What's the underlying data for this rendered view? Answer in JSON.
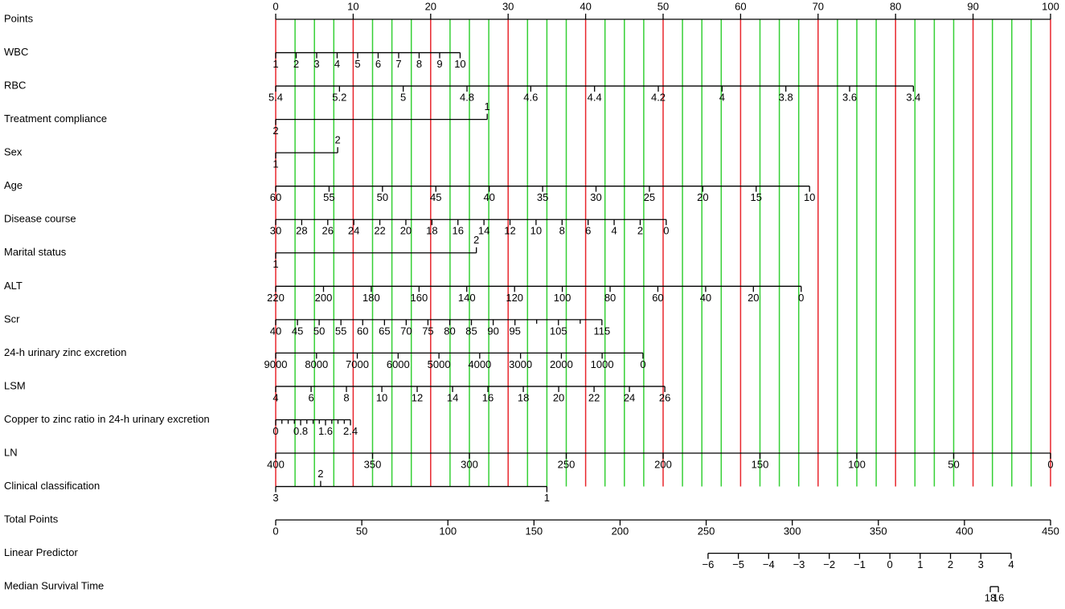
{
  "chart_data": {
    "type": "nomogram",
    "major_grid_color": "#e8262d",
    "minor_grid_color": "#35d035",
    "points_axis": {
      "name": "Points",
      "xlim": [
        0,
        100
      ],
      "xticks": [
        0,
        10,
        20,
        30,
        40,
        50,
        60,
        70,
        80,
        90,
        100
      ],
      "minor_xticks": [
        2.5,
        5,
        7.5,
        12.5,
        15,
        17.5,
        22.5,
        25,
        27.5,
        32.5,
        35,
        37.5,
        42.5,
        45,
        47.5,
        52.5,
        55,
        57.5,
        62.5,
        65,
        67.5,
        72.5,
        75,
        77.5,
        82.5,
        85,
        87.5,
        92.5,
        95,
        97.5
      ]
    },
    "rows": [
      {
        "name": "WBC",
        "ticks": [
          {
            "value": 0,
            "label": "1"
          },
          {
            "value": 2.64,
            "label": "2"
          },
          {
            "value": 5.29,
            "label": "3"
          },
          {
            "value": 7.93,
            "label": "4"
          },
          {
            "value": 10.58,
            "label": "5"
          },
          {
            "value": 13.22,
            "label": "6"
          },
          {
            "value": 15.87,
            "label": "7"
          },
          {
            "value": 18.51,
            "label": "8"
          },
          {
            "value": 21.16,
            "label": "9"
          },
          {
            "value": 23.8,
            "label": "10"
          }
        ]
      },
      {
        "name": "RBC",
        "ticks": [
          {
            "value": 0,
            "label": "5.4"
          },
          {
            "value": 8.23,
            "label": "5.2"
          },
          {
            "value": 16.46,
            "label": "5"
          },
          {
            "value": 24.69,
            "label": "4.8"
          },
          {
            "value": 32.92,
            "label": "4.6"
          },
          {
            "value": 41.15,
            "label": "4.4"
          },
          {
            "value": 49.38,
            "label": "4.2"
          },
          {
            "value": 57.61,
            "label": "4"
          },
          {
            "value": 65.84,
            "label": "3.8"
          },
          {
            "value": 74.07,
            "label": "3.6"
          },
          {
            "value": 82.3,
            "label": "3.4"
          }
        ]
      },
      {
        "name": "Treatment compliance",
        "ticks": [
          {
            "value": 0,
            "label": "2"
          },
          {
            "value": 27.3,
            "label": "1"
          }
        ]
      },
      {
        "name": "Sex",
        "ticks": [
          {
            "value": 0,
            "label": "1"
          },
          {
            "value": 8.0,
            "label": "2"
          }
        ]
      },
      {
        "name": "Age",
        "ticks": [
          {
            "value": 0,
            "label": "60"
          },
          {
            "value": 6.89,
            "label": "55"
          },
          {
            "value": 13.78,
            "label": "50"
          },
          {
            "value": 20.67,
            "label": "45"
          },
          {
            "value": 27.56,
            "label": "40"
          },
          {
            "value": 34.45,
            "label": "35"
          },
          {
            "value": 41.34,
            "label": "30"
          },
          {
            "value": 48.23,
            "label": "25"
          },
          {
            "value": 55.12,
            "label": "20"
          },
          {
            "value": 62.01,
            "label": "15"
          },
          {
            "value": 68.9,
            "label": "10"
          }
        ]
      },
      {
        "name": "Disease course",
        "ticks": [
          {
            "value": 0,
            "label": "30"
          },
          {
            "value": 3.36,
            "label": "28"
          },
          {
            "value": 6.72,
            "label": "26"
          },
          {
            "value": 10.08,
            "label": "24"
          },
          {
            "value": 13.44,
            "label": "22"
          },
          {
            "value": 16.8,
            "label": "20"
          },
          {
            "value": 20.16,
            "label": "18"
          },
          {
            "value": 23.52,
            "label": "16"
          },
          {
            "value": 26.88,
            "label": "14"
          },
          {
            "value": 30.24,
            "label": "12"
          },
          {
            "value": 33.6,
            "label": "10"
          },
          {
            "value": 36.96,
            "label": "8"
          },
          {
            "value": 40.32,
            "label": "6"
          },
          {
            "value": 43.68,
            "label": "4"
          },
          {
            "value": 47.04,
            "label": "2"
          },
          {
            "value": 50.4,
            "label": "0"
          }
        ]
      },
      {
        "name": "Marital status",
        "ticks": [
          {
            "value": 0,
            "label": "1"
          },
          {
            "value": 25.9,
            "label": "2"
          }
        ]
      },
      {
        "name": "ALT",
        "ticks": [
          {
            "value": 0,
            "label": "220"
          },
          {
            "value": 6.17,
            "label": "200"
          },
          {
            "value": 12.33,
            "label": "180"
          },
          {
            "value": 18.5,
            "label": "160"
          },
          {
            "value": 24.66,
            "label": "140"
          },
          {
            "value": 30.83,
            "label": "120"
          },
          {
            "value": 36.99,
            "label": "100"
          },
          {
            "value": 43.16,
            "label": "80"
          },
          {
            "value": 49.32,
            "label": "60"
          },
          {
            "value": 55.49,
            "label": "40"
          },
          {
            "value": 61.65,
            "label": "20"
          },
          {
            "value": 67.82,
            "label": "0"
          }
        ]
      },
      {
        "name": "Scr",
        "ticks": [
          {
            "value": 0,
            "label": "40"
          },
          {
            "value": 2.81,
            "label": "45"
          },
          {
            "value": 5.61,
            "label": "50"
          },
          {
            "value": 8.42,
            "label": "55"
          },
          {
            "value": 11.23,
            "label": "60"
          },
          {
            "value": 14.04,
            "label": "65"
          },
          {
            "value": 16.84,
            "label": "70"
          },
          {
            "value": 19.65,
            "label": "75"
          },
          {
            "value": 22.46,
            "label": "80"
          },
          {
            "value": 25.26,
            "label": "85"
          },
          {
            "value": 28.07,
            "label": "90"
          },
          {
            "value": 30.88,
            "label": "95"
          },
          {
            "value": 33.68,
            "label": null
          },
          {
            "value": 36.49,
            "label": "105"
          },
          {
            "value": 39.3,
            "label": null
          },
          {
            "value": 42.1,
            "label": "115"
          }
        ]
      },
      {
        "name": "24-h urinary zinc excretion",
        "ticks": [
          {
            "value": 0,
            "label": "9000"
          },
          {
            "value": 5.27,
            "label": "8000"
          },
          {
            "value": 10.53,
            "label": "7000"
          },
          {
            "value": 15.8,
            "label": "6000"
          },
          {
            "value": 21.07,
            "label": "5000"
          },
          {
            "value": 26.33,
            "label": "4000"
          },
          {
            "value": 31.6,
            "label": "3000"
          },
          {
            "value": 36.87,
            "label": "2000"
          },
          {
            "value": 42.13,
            "label": "1000"
          },
          {
            "value": 47.4,
            "label": "0"
          }
        ]
      },
      {
        "name": "LSM",
        "ticks": [
          {
            "value": 0,
            "label": "4"
          },
          {
            "value": 4.57,
            "label": "6"
          },
          {
            "value": 9.13,
            "label": "8"
          },
          {
            "value": 13.7,
            "label": "10"
          },
          {
            "value": 18.26,
            "label": "12"
          },
          {
            "value": 22.83,
            "label": "14"
          },
          {
            "value": 27.39,
            "label": "16"
          },
          {
            "value": 31.96,
            "label": "18"
          },
          {
            "value": 36.52,
            "label": "20"
          },
          {
            "value": 41.09,
            "label": "22"
          },
          {
            "value": 45.65,
            "label": "24"
          },
          {
            "value": 50.22,
            "label": "26"
          }
        ]
      },
      {
        "name": "Copper to zinc ratio in 24-h urinary excretion",
        "ticks": [
          {
            "value": 0,
            "label": "0"
          },
          {
            "value": 0.8,
            "label": null
          },
          {
            "value": 1.61,
            "label": null
          },
          {
            "value": 2.41,
            "label": null
          },
          {
            "value": 3.22,
            "label": "0.8"
          },
          {
            "value": 4.02,
            "label": null
          },
          {
            "value": 4.83,
            "label": null
          },
          {
            "value": 5.63,
            "label": null
          },
          {
            "value": 6.43,
            "label": "1.6"
          },
          {
            "value": 7.24,
            "label": null
          },
          {
            "value": 8.04,
            "label": null
          },
          {
            "value": 8.85,
            "label": null
          },
          {
            "value": 9.65,
            "label": "2.4"
          }
        ]
      },
      {
        "name": "LN",
        "ticks": [
          {
            "value": 0,
            "label": "400"
          },
          {
            "value": 12.5,
            "label": "350"
          },
          {
            "value": 25,
            "label": "300"
          },
          {
            "value": 37.5,
            "label": "250"
          },
          {
            "value": 50,
            "label": "200"
          },
          {
            "value": 62.5,
            "label": "150"
          },
          {
            "value": 75,
            "label": "100"
          },
          {
            "value": 87.5,
            "label": "50"
          },
          {
            "value": 100,
            "label": "0"
          }
        ]
      },
      {
        "name": "Clinical classification",
        "ticks": [
          {
            "value": 0,
            "label": "3"
          },
          {
            "value": 5.8,
            "label": "2"
          },
          {
            "value": 35.0,
            "label": "1"
          }
        ]
      }
    ],
    "total_axis": {
      "name": "Total Points",
      "xlim": [
        0,
        450
      ],
      "xticks": [
        0,
        50,
        100,
        150,
        200,
        250,
        300,
        350,
        400,
        450
      ]
    },
    "predictor_rows": [
      {
        "name": "Linear Predictor",
        "ticks": [
          {
            "value": 251.1,
            "label": "−6"
          },
          {
            "value": 268.7,
            "label": "−5"
          },
          {
            "value": 286.3,
            "label": "−4"
          },
          {
            "value": 303.9,
            "label": "−3"
          },
          {
            "value": 321.5,
            "label": "−2"
          },
          {
            "value": 339.1,
            "label": "−1"
          },
          {
            "value": 356.7,
            "label": "0"
          },
          {
            "value": 374.3,
            "label": "1"
          },
          {
            "value": 391.9,
            "label": "2"
          },
          {
            "value": 409.5,
            "label": "3"
          },
          {
            "value": 427.1,
            "label": "4"
          }
        ]
      },
      {
        "name": "Median Survival Time",
        "ticks": [
          {
            "value": 415.0,
            "label": "18"
          },
          {
            "value": 419.7,
            "label": "16"
          }
        ]
      }
    ]
  }
}
